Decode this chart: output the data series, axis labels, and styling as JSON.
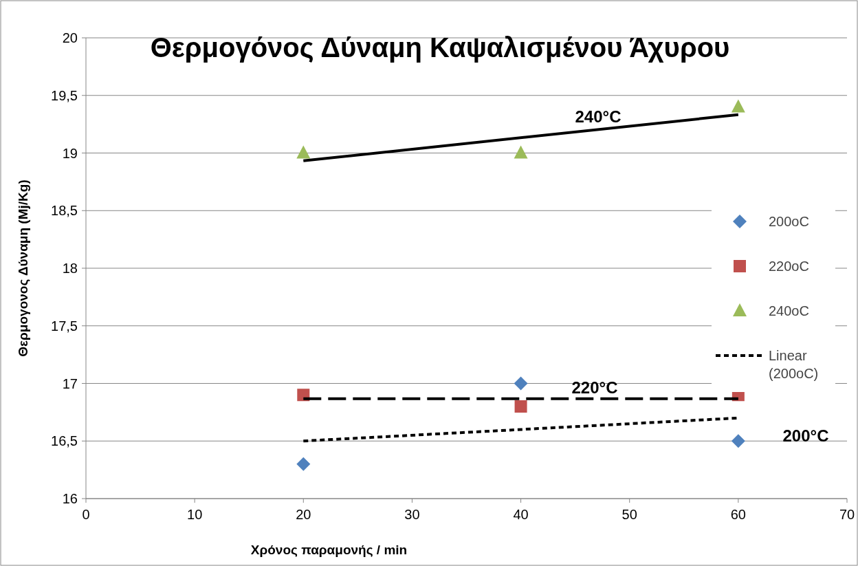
{
  "chart_data": {
    "type": "scatter",
    "title": "Θερμογόνος Δύναμη Καψαλισμένου Άχυρου",
    "xlabel": "Χρόνος παραμονής / min",
    "ylabel": "Θερμογονος Δύναμη (Mj/Kg)",
    "xlim": [
      0,
      70
    ],
    "xticks": [
      0,
      10,
      20,
      30,
      40,
      50,
      60,
      70
    ],
    "ylim": [
      16,
      20
    ],
    "yticks": [
      16,
      {
        "value": 16.5,
        "label": "16,5"
      },
      17,
      {
        "value": 17.5,
        "label": "17,5"
      },
      18,
      {
        "value": 18.5,
        "label": "18,5"
      },
      19,
      {
        "value": 19.5,
        "label": "19,5"
      },
      20
    ],
    "grid": "y",
    "legend": "right",
    "series": [
      {
        "name": "200oC",
        "color": "#4f81bd",
        "marker": "diamond",
        "x": [
          20,
          40,
          60
        ],
        "values": [
          16.3,
          17.0,
          16.5
        ]
      },
      {
        "name": "220oC",
        "color": "#c0504d",
        "marker": "square",
        "x": [
          20,
          40,
          60
        ],
        "values": [
          16.9,
          16.8,
          16.9
        ]
      },
      {
        "name": "240oC",
        "color": "#9bbb59",
        "marker": "triangle",
        "x": [
          20,
          40,
          60
        ],
        "values": [
          19.0,
          19.0,
          19.4
        ]
      },
      {
        "type": "line",
        "name": "Linear (200oC)",
        "color": "#000000",
        "line_style": "dotted",
        "x": [
          20,
          60
        ],
        "values": [
          16.5,
          16.7
        ]
      },
      {
        "type": "line",
        "color": "#000000",
        "line_style": "dashed",
        "x": [
          20,
          60
        ],
        "values": [
          16.867,
          16.867
        ]
      },
      {
        "type": "line",
        "color": "#000000",
        "line_style": "solid",
        "x": [
          20,
          60
        ],
        "values": [
          18.933,
          19.333
        ]
      }
    ],
    "annotations": [
      "240°C",
      "220°C",
      "200°C"
    ]
  }
}
